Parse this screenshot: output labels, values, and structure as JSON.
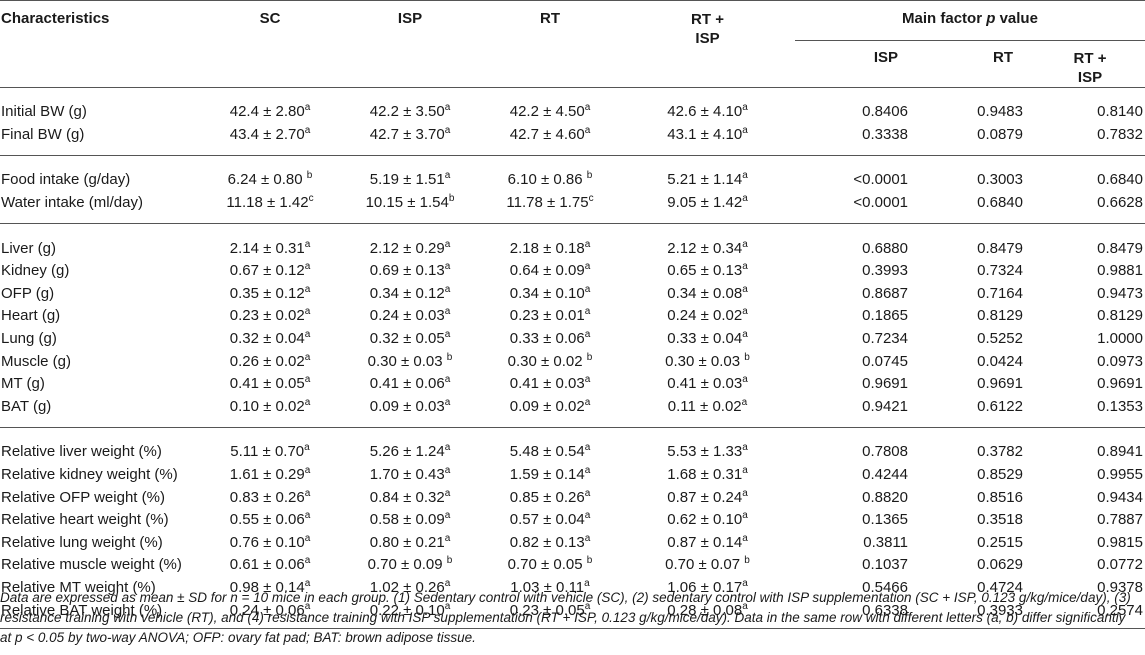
{
  "header": {
    "characteristics": "Characteristics",
    "sc": "SC",
    "isp": "ISP",
    "rt": "RT",
    "rt_isp": "RT +\nISP",
    "main_factor_prefix": "Main factor ",
    "main_factor_p": "p",
    "main_factor_suffix": " value",
    "p_isp": "ISP",
    "p_rt": "RT",
    "p_rt_isp": "RT +\nISP"
  },
  "groups": [
    {
      "rows": [
        {
          "label": "Initial BW (g)",
          "sc": {
            "v": "42.4 ± 2.80",
            "s": "a"
          },
          "isp": {
            "v": "42.2 ± 3.50",
            "s": "a"
          },
          "rt": {
            "v": "42.2 ± 4.50",
            "s": "a"
          },
          "rtisp": {
            "v": "42.6 ± 4.10",
            "s": "a"
          },
          "p_isp": "0.8406",
          "p_rt": "0.9483",
          "p_rtisp": "0.8140"
        },
        {
          "label": "Final BW (g)",
          "sc": {
            "v": "43.4 ± 2.70",
            "s": "a"
          },
          "isp": {
            "v": "42.7 ± 3.70",
            "s": "a"
          },
          "rt": {
            "v": "42.7 ± 4.60",
            "s": "a"
          },
          "rtisp": {
            "v": "43.1 ± 4.10",
            "s": "a"
          },
          "p_isp": "0.3338",
          "p_rt": "0.0879",
          "p_rtisp": "0.7832"
        }
      ]
    },
    {
      "rows": [
        {
          "label": "Food intake (g/day)",
          "sc": {
            "v": "6.24 ± 0.80 ",
            "s": "b"
          },
          "isp": {
            "v": "5.19 ± 1.51",
            "s": "a"
          },
          "rt": {
            "v": "6.10 ± 0.86 ",
            "s": "b"
          },
          "rtisp": {
            "v": "5.21 ± 1.14",
            "s": "a"
          },
          "p_isp": "<0.0001",
          "p_rt": "0.3003",
          "p_rtisp": "0.6840"
        },
        {
          "label": "Water intake (ml/day)",
          "sc": {
            "v": "11.18 ± 1.42",
            "s": "c"
          },
          "isp": {
            "v": "10.15 ± 1.54",
            "s": "b"
          },
          "rt": {
            "v": "11.78 ± 1.75",
            "s": "c"
          },
          "rtisp": {
            "v": "9.05 ± 1.42",
            "s": "a"
          },
          "p_isp": "<0.0001",
          "p_rt": "0.6840",
          "p_rtisp": "0.6628"
        }
      ]
    },
    {
      "rows": [
        {
          "label": "Liver (g)",
          "sc": {
            "v": "2.14 ± 0.31",
            "s": "a"
          },
          "isp": {
            "v": "2.12 ± 0.29",
            "s": "a"
          },
          "rt": {
            "v": "2.18 ± 0.18",
            "s": "a"
          },
          "rtisp": {
            "v": "2.12 ± 0.34",
            "s": "a"
          },
          "p_isp": "0.6880",
          "p_rt": "0.8479",
          "p_rtisp": "0.8479"
        },
        {
          "label": "Kidney (g)",
          "sc": {
            "v": "0.67 ± 0.12",
            "s": "a"
          },
          "isp": {
            "v": "0.69 ± 0.13",
            "s": "a"
          },
          "rt": {
            "v": "0.64 ± 0.09",
            "s": "a"
          },
          "rtisp": {
            "v": "0.65 ± 0.13",
            "s": "a"
          },
          "p_isp": "0.3993",
          "p_rt": "0.7324",
          "p_rtisp": "0.9881"
        },
        {
          "label": "OFP (g)",
          "sc": {
            "v": "0.35 ± 0.12",
            "s": "a"
          },
          "isp": {
            "v": "0.34 ± 0.12",
            "s": "a"
          },
          "rt": {
            "v": "0.34 ± 0.10",
            "s": "a"
          },
          "rtisp": {
            "v": "0.34 ± 0.08",
            "s": "a"
          },
          "p_isp": "0.8687",
          "p_rt": "0.7164",
          "p_rtisp": "0.9473"
        },
        {
          "label": "Heart (g)",
          "sc": {
            "v": "0.23 ± 0.02",
            "s": "a"
          },
          "isp": {
            "v": "0.24 ± 0.03",
            "s": "a"
          },
          "rt": {
            "v": "0.23 ± 0.01",
            "s": "a"
          },
          "rtisp": {
            "v": "0.24 ± 0.02",
            "s": "a"
          },
          "p_isp": "0.1865",
          "p_rt": "0.8129",
          "p_rtisp": "0.8129"
        },
        {
          "label": "Lung (g)",
          "sc": {
            "v": "0.32 ± 0.04",
            "s": "a"
          },
          "isp": {
            "v": "0.32 ± 0.05",
            "s": "a"
          },
          "rt": {
            "v": "0.33 ± 0.06",
            "s": "a"
          },
          "rtisp": {
            "v": "0.33 ± 0.04",
            "s": "a"
          },
          "p_isp": "0.7234",
          "p_rt": "0.5252",
          "p_rtisp": "1.0000"
        },
        {
          "label": "Muscle (g)",
          "sc": {
            "v": "0.26 ± 0.02",
            "s": "a"
          },
          "isp": {
            "v": "0.30 ± 0.03 ",
            "s": "b"
          },
          "rt": {
            "v": "0.30 ± 0.02 ",
            "s": "b"
          },
          "rtisp": {
            "v": "0.30 ± 0.03 ",
            "s": "b"
          },
          "p_isp": "0.0745",
          "p_rt": "0.0424",
          "p_rtisp": "0.0973"
        },
        {
          "label": "MT (g)",
          "sc": {
            "v": "0.41 ± 0.05",
            "s": "a"
          },
          "isp": {
            "v": "0.41 ± 0.06",
            "s": "a"
          },
          "rt": {
            "v": "0.41 ± 0.03",
            "s": "a"
          },
          "rtisp": {
            "v": "0.41 ± 0.03",
            "s": "a"
          },
          "p_isp": "0.9691",
          "p_rt": "0.9691",
          "p_rtisp": "0.9691"
        },
        {
          "label": "BAT (g)",
          "sc": {
            "v": "0.10 ± 0.02",
            "s": "a"
          },
          "isp": {
            "v": "0.09 ± 0.03",
            "s": "a"
          },
          "rt": {
            "v": "0.09 ± 0.02",
            "s": "a"
          },
          "rtisp": {
            "v": "0.11 ± 0.02",
            "s": "a"
          },
          "p_isp": "0.9421",
          "p_rt": "0.6122",
          "p_rtisp": "0.1353"
        }
      ]
    },
    {
      "rows": [
        {
          "label": "Relative liver weight (%)",
          "sc": {
            "v": "5.11 ± 0.70",
            "s": "a"
          },
          "isp": {
            "v": "5.26 ± 1.24",
            "s": "a"
          },
          "rt": {
            "v": "5.48 ± 0.54",
            "s": "a"
          },
          "rtisp": {
            "v": "5.53 ± 1.33",
            "s": "a"
          },
          "p_isp": "0.7808",
          "p_rt": "0.3782",
          "p_rtisp": "0.8941"
        },
        {
          "label": "Relative kidney weight (%)",
          "sc": {
            "v": "1.61 ± 0.29",
            "s": "a"
          },
          "isp": {
            "v": "1.70 ± 0.43",
            "s": "a"
          },
          "rt": {
            "v": "1.59 ± 0.14",
            "s": "a"
          },
          "rtisp": {
            "v": "1.68 ± 0.31",
            "s": "a"
          },
          "p_isp": "0.4244",
          "p_rt": "0.8529",
          "p_rtisp": "0.9955"
        },
        {
          "label": "Relative OFP weight (%)",
          "sc": {
            "v": "0.83 ± 0.26",
            "s": "a"
          },
          "isp": {
            "v": "0.84 ± 0.32",
            "s": "a"
          },
          "rt": {
            "v": "0.85 ± 0.26",
            "s": "a"
          },
          "rtisp": {
            "v": "0.87 ± 0.24",
            "s": "a"
          },
          "p_isp": "0.8820",
          "p_rt": "0.8516",
          "p_rtisp": "0.9434"
        },
        {
          "label": "Relative heart weight (%)",
          "sc": {
            "v": "0.55 ± 0.06",
            "s": "a"
          },
          "isp": {
            "v": "0.58 ± 0.09",
            "s": "a"
          },
          "rt": {
            "v": "0.57 ± 0.04",
            "s": "a"
          },
          "rtisp": {
            "v": "0.62 ± 0.10",
            "s": "a"
          },
          "p_isp": "0.1365",
          "p_rt": "0.3518",
          "p_rtisp": "0.7887"
        },
        {
          "label": "Relative lung weight (%)",
          "sc": {
            "v": "0.76 ± 0.10",
            "s": "a"
          },
          "isp": {
            "v": "0.80 ± 0.21",
            "s": "a"
          },
          "rt": {
            "v": "0.82 ± 0.13",
            "s": "a"
          },
          "rtisp": {
            "v": "0.87 ± 0.14",
            "s": "a"
          },
          "p_isp": "0.3811",
          "p_rt": "0.2515",
          "p_rtisp": "0.9815"
        },
        {
          "label": "Relative muscle weight (%)",
          "sc": {
            "v": "0.61 ± 0.06",
            "s": "a"
          },
          "isp": {
            "v": "0.70 ± 0.09 ",
            "s": "b"
          },
          "rt": {
            "v": "0.70 ± 0.05 ",
            "s": "b"
          },
          "rtisp": {
            "v": "0.70 ± 0.07 ",
            "s": "b"
          },
          "p_isp": "0.1037",
          "p_rt": "0.0629",
          "p_rtisp": "0.0772"
        },
        {
          "label": "Relative MT weight (%)",
          "sc": {
            "v": "0.98 ± 0.14",
            "s": "a"
          },
          "isp": {
            "v": "1.02 ± 0.26",
            "s": "a"
          },
          "rt": {
            "v": "1.03 ± 0.11",
            "s": "a"
          },
          "rtisp": {
            "v": "1.06 ± 0.17",
            "s": "a"
          },
          "p_isp": "0.5466",
          "p_rt": "0.4724",
          "p_rtisp": "0.9378"
        },
        {
          "label": "Relative BAT weight (%)",
          "sc": {
            "v": "0.24 ± 0.06",
            "s": "a"
          },
          "isp": {
            "v": "0.22 ± 0.10",
            "s": "a"
          },
          "rt": {
            "v": "0.23 ± 0.05",
            "s": "a"
          },
          "rtisp": {
            "v": "0.28 ± 0.08",
            "s": "a"
          },
          "p_isp": "0.6338",
          "p_rt": "0.3933",
          "p_rtisp": "0.2574"
        }
      ]
    }
  ],
  "footnote": {
    "part1": "Data are expressed as mean ± SD for n = 10 mice in each group. (1) Sedentary control with vehicle (SC), (2) sedentary control with ISP supplementation (SC + ISP, 0.123 g/kg/mice/day), (3) resistance training with vehicle (RT), and (4) resistance training with ISP supplementation (RT + ISP, 0.123 g/kg/mice/day). Data in the same row with different letters (a, b) differ significantly at ",
    "p_letter": "p",
    "part2": " < 0.05 by two-way ANOVA; OFP: ovary fat pad; BAT: brown adipose tissue."
  }
}
